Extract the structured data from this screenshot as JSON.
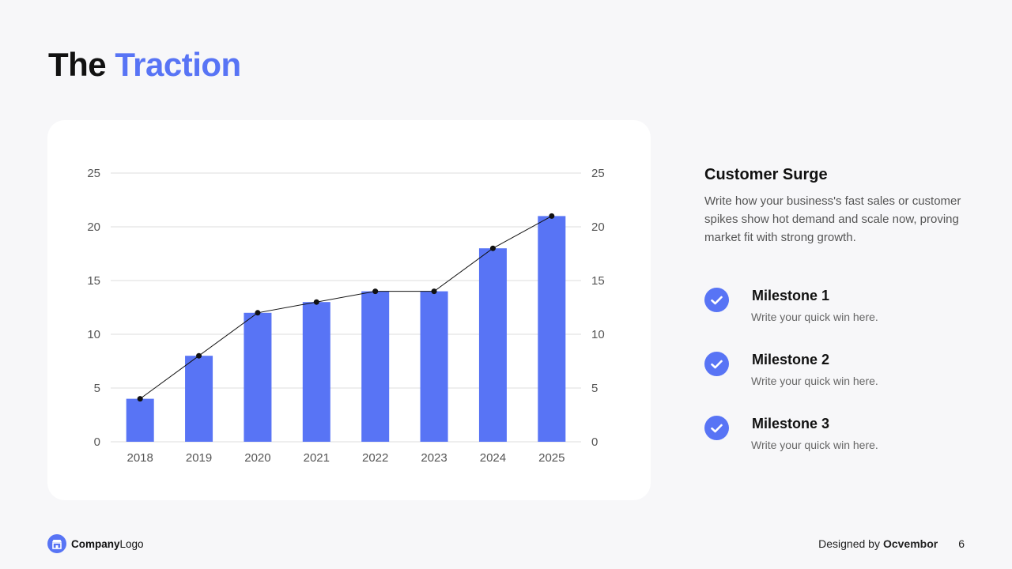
{
  "header": {
    "title_part1": "The",
    "title_part2": "Traction",
    "accent_color": "#5874f5"
  },
  "chart_data": {
    "type": "bar",
    "categories": [
      "2018",
      "2019",
      "2020",
      "2021",
      "2022",
      "2023",
      "2024",
      "2025"
    ],
    "series": [
      {
        "type": "bar",
        "values": [
          4,
          8,
          12,
          13,
          14,
          14,
          18,
          21
        ],
        "color": "#5874f5"
      },
      {
        "type": "line",
        "values": [
          4,
          8,
          12,
          13,
          14,
          14,
          18,
          21
        ],
        "color": "#111111"
      }
    ],
    "yticks": [
      "0",
      "5",
      "10",
      "15",
      "20",
      "25"
    ],
    "ylim": [
      0,
      25
    ],
    "secondary_axis": true,
    "grid": true
  },
  "side": {
    "heading": "Customer Surge",
    "body": "Write how your business's fast sales or customer spikes show hot demand and scale now, proving market fit with strong growth."
  },
  "milestones": [
    {
      "title": "Milestone 1",
      "desc": "Write your quick win here.",
      "icon": "check-icon"
    },
    {
      "title": "Milestone 2",
      "desc": "Write your quick win here.",
      "icon": "check-icon"
    },
    {
      "title": "Milestone 3",
      "desc": "Write your quick win here.",
      "icon": "check-icon"
    }
  ],
  "footer": {
    "logo_bold": "Company",
    "logo_rest": "Logo",
    "logo_icon": "store-icon",
    "designed_by": "Designed by",
    "designer": "Ocvembor",
    "page_number": "6"
  }
}
